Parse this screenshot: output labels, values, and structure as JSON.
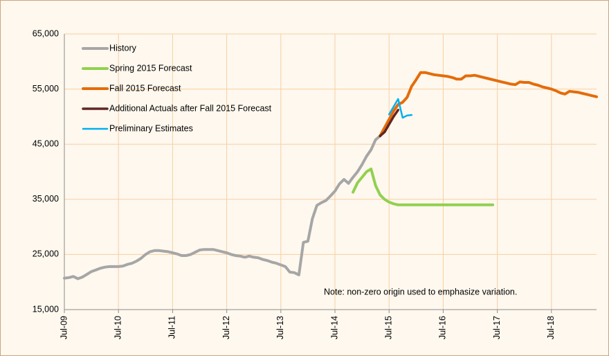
{
  "chart_data": {
    "type": "line",
    "categories": [
      "Jul-09",
      null,
      null,
      null,
      null,
      null,
      null,
      null,
      null,
      null,
      null,
      null,
      "Jul-10",
      null,
      null,
      null,
      null,
      null,
      null,
      null,
      null,
      null,
      null,
      null,
      "Jul-11",
      null,
      null,
      null,
      null,
      null,
      null,
      null,
      null,
      null,
      null,
      null,
      "Jul-12",
      null,
      null,
      null,
      null,
      null,
      null,
      null,
      null,
      null,
      null,
      null,
      "Jul-13",
      null,
      null,
      null,
      null,
      null,
      null,
      null,
      null,
      null,
      null,
      null,
      "Jul-14",
      null,
      null,
      null,
      null,
      null,
      null,
      null,
      null,
      null,
      null,
      null,
      "Jul-15",
      null,
      null,
      null,
      null,
      null,
      null,
      null,
      null,
      null,
      null,
      null,
      "Jul-16",
      null,
      null,
      null,
      null,
      null,
      null,
      null,
      null,
      null,
      null,
      null,
      "Jul-17",
      null,
      null,
      null,
      null,
      null,
      null,
      null,
      null,
      null,
      null,
      null,
      "Jul-18",
      null,
      null,
      null,
      null,
      null,
      null,
      null,
      null,
      null,
      null
    ],
    "series": [
      {
        "name": "History",
        "color": "#a6a6a6",
        "width": 4,
        "values": [
          20700,
          20800,
          21000,
          20600,
          20900,
          21400,
          21900,
          22200,
          22500,
          22700,
          22800,
          22800,
          22800,
          22900,
          23200,
          23400,
          23800,
          24300,
          25000,
          25500,
          25700,
          25700,
          25600,
          25500,
          25300,
          25100,
          24800,
          24800,
          25000,
          25400,
          25800,
          25900,
          25900,
          25900,
          25700,
          25500,
          25300,
          25000,
          24800,
          24700,
          24500,
          24700,
          24500,
          24400,
          24100,
          23900,
          23600,
          23400,
          23100,
          22800,
          21800,
          21700,
          21300,
          27200,
          27400,
          31500,
          33900,
          34400,
          34800,
          35600,
          36500,
          37800,
          38600,
          37900,
          39000,
          40000,
          41300,
          42800,
          44000,
          45800,
          46500,
          null,
          null,
          null,
          null,
          null,
          null,
          null,
          null,
          null,
          null,
          null,
          null,
          null,
          null,
          null,
          null,
          null,
          null,
          null,
          null,
          null,
          null,
          null,
          null,
          null,
          null,
          null,
          null,
          null,
          null,
          null,
          null,
          null,
          null,
          null,
          null,
          null,
          null,
          null,
          null,
          null,
          null,
          null,
          null,
          null,
          null,
          null,
          null
        ]
      },
      {
        "name": "Spring 2015 Forecast",
        "color": "#92d050",
        "width": 4,
        "values": [
          null,
          null,
          null,
          null,
          null,
          null,
          null,
          null,
          null,
          null,
          null,
          null,
          null,
          null,
          null,
          null,
          null,
          null,
          null,
          null,
          null,
          null,
          null,
          null,
          null,
          null,
          null,
          null,
          null,
          null,
          null,
          null,
          null,
          null,
          null,
          null,
          null,
          null,
          null,
          null,
          null,
          null,
          null,
          null,
          null,
          null,
          null,
          null,
          null,
          null,
          null,
          null,
          null,
          null,
          null,
          null,
          null,
          null,
          null,
          null,
          null,
          null,
          null,
          null,
          36300,
          38000,
          39000,
          40000,
          40500,
          37500,
          35800,
          35000,
          34500,
          34200,
          34000,
          34000,
          34000,
          34000,
          34000,
          34000,
          34000,
          34000,
          34000,
          34000,
          34000,
          34000,
          34000,
          34000,
          34000,
          34000,
          34000,
          34000,
          34000,
          34000,
          34000,
          34000,
          null,
          null,
          null,
          null,
          null,
          null,
          null,
          null,
          null,
          null,
          null,
          null,
          null,
          null,
          null,
          null,
          null,
          null,
          null,
          null,
          null,
          null,
          null
        ]
      },
      {
        "name": "Fall 2015 Forecast",
        "color": "#e46c0a",
        "width": 4,
        "values": [
          null,
          null,
          null,
          null,
          null,
          null,
          null,
          null,
          null,
          null,
          null,
          null,
          null,
          null,
          null,
          null,
          null,
          null,
          null,
          null,
          null,
          null,
          null,
          null,
          null,
          null,
          null,
          null,
          null,
          null,
          null,
          null,
          null,
          null,
          null,
          null,
          null,
          null,
          null,
          null,
          null,
          null,
          null,
          null,
          null,
          null,
          null,
          null,
          null,
          null,
          null,
          null,
          null,
          null,
          null,
          null,
          null,
          null,
          null,
          null,
          null,
          null,
          null,
          null,
          null,
          null,
          null,
          null,
          null,
          null,
          46500,
          48000,
          49500,
          51000,
          52200,
          52600,
          53500,
          55500,
          56700,
          58000,
          58000,
          57800,
          57600,
          57500,
          57400,
          57300,
          57100,
          56800,
          56800,
          57400,
          57400,
          57500,
          57300,
          57100,
          56900,
          56700,
          56500,
          56300,
          56100,
          55900,
          55800,
          56300,
          56200,
          56200,
          55900,
          55700,
          55400,
          55200,
          55000,
          54700,
          54300,
          54100,
          54600,
          54500,
          54400,
          54200,
          54000,
          53800,
          53600
        ]
      },
      {
        "name": "Additional Actuals after Fall 2015 Forecast",
        "color": "#632523",
        "width": 3.5,
        "values": [
          null,
          null,
          null,
          null,
          null,
          null,
          null,
          null,
          null,
          null,
          null,
          null,
          null,
          null,
          null,
          null,
          null,
          null,
          null,
          null,
          null,
          null,
          null,
          null,
          null,
          null,
          null,
          null,
          null,
          null,
          null,
          null,
          null,
          null,
          null,
          null,
          null,
          null,
          null,
          null,
          null,
          null,
          null,
          null,
          null,
          null,
          null,
          null,
          null,
          null,
          null,
          null,
          null,
          null,
          null,
          null,
          null,
          null,
          null,
          null,
          null,
          null,
          null,
          null,
          null,
          null,
          null,
          null,
          null,
          null,
          46500,
          47200,
          48600,
          50000,
          51200,
          null,
          null,
          null,
          null,
          null,
          null,
          null,
          null,
          null,
          null,
          null,
          null,
          null,
          null,
          null,
          null,
          null,
          null,
          null,
          null,
          null,
          null,
          null,
          null,
          null,
          null,
          null,
          null,
          null,
          null,
          null,
          null,
          null,
          null,
          null,
          null,
          null,
          null,
          null,
          null,
          null,
          null,
          null,
          null
        ]
      },
      {
        "name": "Preliminary Estimates",
        "color": "#00b0f0",
        "width": 2.5,
        "values": [
          null,
          null,
          null,
          null,
          null,
          null,
          null,
          null,
          null,
          null,
          null,
          null,
          null,
          null,
          null,
          null,
          null,
          null,
          null,
          null,
          null,
          null,
          null,
          null,
          null,
          null,
          null,
          null,
          null,
          null,
          null,
          null,
          null,
          null,
          null,
          null,
          null,
          null,
          null,
          null,
          null,
          null,
          null,
          null,
          null,
          null,
          null,
          null,
          null,
          null,
          null,
          null,
          null,
          null,
          null,
          null,
          null,
          null,
          null,
          null,
          null,
          null,
          null,
          null,
          null,
          null,
          null,
          null,
          null,
          null,
          null,
          null,
          50400,
          51800,
          53200,
          49800,
          50200,
          50300,
          null,
          null,
          null,
          null,
          null,
          null,
          null,
          null,
          null,
          null,
          null,
          null,
          null,
          null,
          null,
          null,
          null,
          null,
          null,
          null,
          null,
          null,
          null,
          null,
          null,
          null,
          null,
          null,
          null,
          null,
          null,
          null,
          null,
          null,
          null,
          null,
          null,
          null,
          null,
          null,
          null
        ]
      }
    ],
    "ylim": [
      15000,
      65000
    ],
    "yticks": [
      {
        "value": 15000,
        "label": "15,000"
      },
      {
        "value": 25000,
        "label": "25,000"
      },
      {
        "value": 35000,
        "label": "35,000"
      },
      {
        "value": 45000,
        "label": "45,000"
      },
      {
        "value": 55000,
        "label": "55,000"
      },
      {
        "value": 65000,
        "label": "65,000"
      }
    ],
    "grid": true,
    "legend": "upper left",
    "annotation": "Note: non-zero origin used to emphasize variation."
  }
}
